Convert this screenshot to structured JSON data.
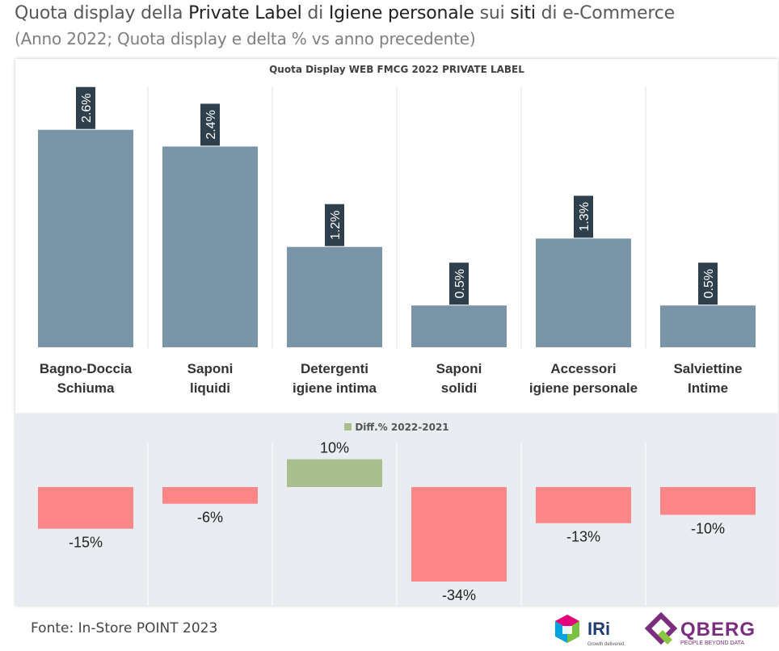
{
  "title": {
    "p1": "Quota display della ",
    "b1": "Private Label",
    "p2": " di ",
    "b2": "Igiene personale",
    "p3": " sui ",
    "b3": "siti",
    "p4": " di e-Commerce"
  },
  "subtitle": "(Anno 2022; Quota display e delta %  vs anno precedente)",
  "footer": "Fonte: In-Store POINT 2023",
  "logos": {
    "iri": "IRi",
    "iri_tagline": "Growth delivered.",
    "qberg": "QBERG",
    "qberg_tagline": "PEOPLE BEYOND DATA"
  },
  "colors": {
    "bar_main": "#7a94a8",
    "label_bg": "#2f3f4c",
    "neg": "#ff8787",
    "pos": "#a9c08e",
    "bottom_bg": "#e9ecf0"
  },
  "chart_data": [
    {
      "type": "bar",
      "title": "Quota Display WEB FMCG 2022 PRIVATE LABEL",
      "categories": [
        [
          "Bagno-Doccia",
          "Schiuma"
        ],
        [
          "Saponi",
          "liquidi"
        ],
        [
          "Detergenti",
          "igiene intima"
        ],
        [
          "Saponi",
          "solidi"
        ],
        [
          "Accessori",
          "igiene personale"
        ],
        [
          "Salviettine",
          "Intime"
        ]
      ],
      "values": [
        2.6,
        2.4,
        1.2,
        0.5,
        1.3,
        0.5
      ],
      "labels": [
        "2.6%",
        "2.4%",
        "1.2%",
        "0.5%",
        "1.3%",
        "0.5%"
      ],
      "unit": "%",
      "ylim": [
        0,
        2.8
      ]
    },
    {
      "type": "bar",
      "legend": "Diff.% 2022-2021",
      "categories": [
        "Bagno-Doccia Schiuma",
        "Saponi liquidi",
        "Detergenti igiene intima",
        "Saponi solidi",
        "Accessori igiene personale",
        "Salviettine Intime"
      ],
      "values": [
        -15,
        -6,
        10,
        -34,
        -13,
        -10
      ],
      "labels": [
        "-15%",
        "-6%",
        "10%",
        "-34%",
        "-13%",
        "-10%"
      ],
      "unit": "%"
    }
  ]
}
